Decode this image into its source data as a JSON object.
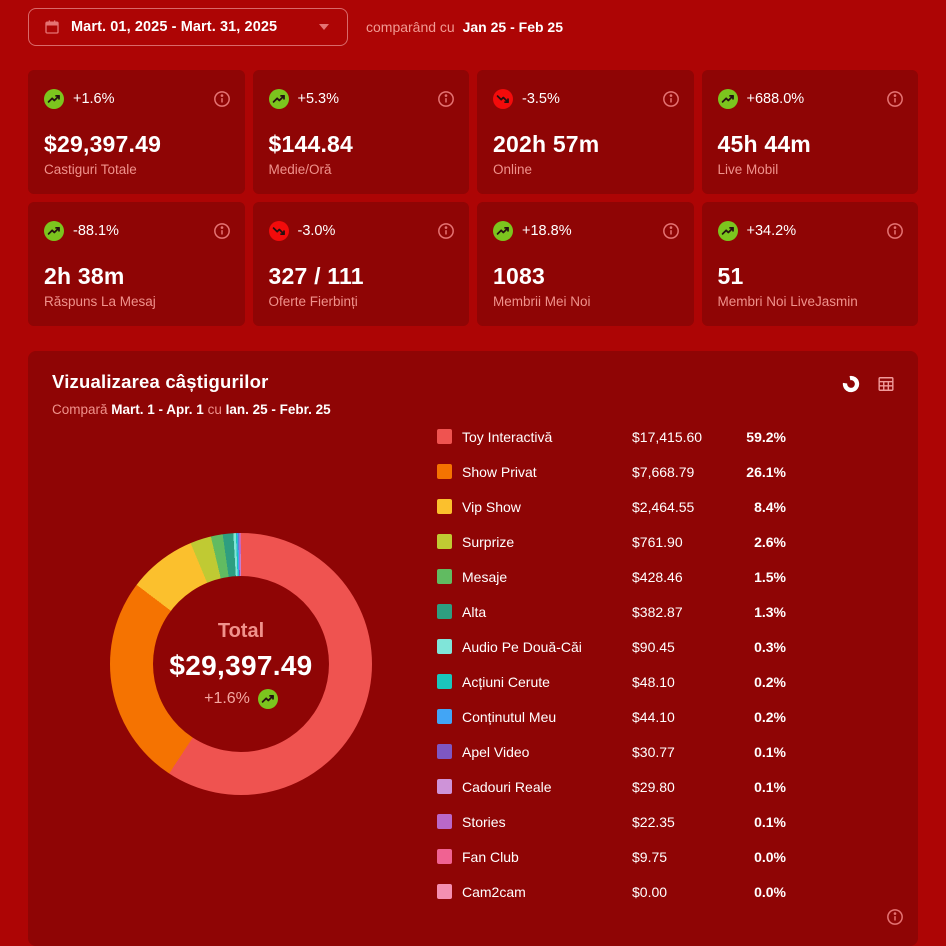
{
  "colors": {
    "page_bg": "#AD0505",
    "card_bg": "#8F0505",
    "muted_text": "#F0928C",
    "trend_up": "#7CC51E",
    "trend_down": "#F30B0B",
    "trend_arrow": "#241010",
    "info_icon": "#E57373",
    "active_icon": "#FFFFFF",
    "inactive_icon": "#F09B9B"
  },
  "topbar": {
    "date_range": "Mart. 01, 2025 - Mart. 31, 2025",
    "comparing_label": "comparând cu",
    "comparing_range": "Jan 25 - Feb 25"
  },
  "stat_cards": [
    {
      "trend": "up",
      "percent": "+1.6%",
      "value": "$29,397.49",
      "label": "Castiguri Totale"
    },
    {
      "trend": "up",
      "percent": "+5.3%",
      "value": "$144.84",
      "label": "Medie/Oră"
    },
    {
      "trend": "down",
      "percent": "-3.5%",
      "value": "202h 57m",
      "label": "Online"
    },
    {
      "trend": "up",
      "percent": "+688.0%",
      "value": "45h 44m",
      "label": "Live Mobil"
    },
    {
      "trend": "up",
      "percent": "-88.1%",
      "value": "2h 38m",
      "label": "Răspuns La Mesaj"
    },
    {
      "trend": "down",
      "percent": "-3.0%",
      "value": "327 / 111",
      "label": "Oferte Fierbinți"
    },
    {
      "trend": "up",
      "percent": "+18.8%",
      "value": "1083",
      "label": "Membrii Mei Noi"
    },
    {
      "trend": "up",
      "percent": "+34.2%",
      "value": "51",
      "label": "Membri Noi LiveJasmin"
    }
  ],
  "panel": {
    "title": "Vizualizarea câștigurilor",
    "compare_prefix": "Compară",
    "compare_current": "Mart. 1 - Apr. 1",
    "compare_connector": "cu",
    "compare_previous": "Ian. 25 - Febr. 25",
    "center": {
      "label": "Total",
      "value": "$29,397.49",
      "change": "+1.6%",
      "trend": "up"
    }
  },
  "chart_data": {
    "type": "pie",
    "donut": true,
    "title": "Vizualizarea câștigurilor",
    "legend_position": "right",
    "total_label": "Total",
    "total_value": 29397.49,
    "total_display": "$29,397.49",
    "change_display": "+1.6%",
    "segments": [
      {
        "label": "Toy Interactivă",
        "value": 17415.6,
        "display": "$17,415.60",
        "percent": "59.2%",
        "color": "#EF5350"
      },
      {
        "label": "Show Privat",
        "value": 7668.79,
        "display": "$7,668.79",
        "percent": "26.1%",
        "color": "#F57301"
      },
      {
        "label": "Vip Show",
        "value": 2464.55,
        "display": "$2,464.55",
        "percent": "8.4%",
        "color": "#FBC02D"
      },
      {
        "label": "Surprize",
        "value": 761.9,
        "display": "$761.90",
        "percent": "2.6%",
        "color": "#C0CA33"
      },
      {
        "label": "Mesaje",
        "value": 428.46,
        "display": "$428.46",
        "percent": "1.5%",
        "color": "#61BB61"
      },
      {
        "label": "Alta",
        "value": 382.87,
        "display": "$382.87",
        "percent": "1.3%",
        "color": "#2E9E80"
      },
      {
        "label": "Audio Pe Două-Căi",
        "value": 90.45,
        "display": "$90.45",
        "percent": "0.3%",
        "color": "#80E5D9"
      },
      {
        "label": "Acțiuni Cerute",
        "value": 48.1,
        "display": "$48.10",
        "percent": "0.2%",
        "color": "#1AC6BC"
      },
      {
        "label": "Conținutul Meu",
        "value": 44.1,
        "display": "$44.10",
        "percent": "0.2%",
        "color": "#42A5F5"
      },
      {
        "label": "Apel Video",
        "value": 30.77,
        "display": "$30.77",
        "percent": "0.1%",
        "color": "#7E57C2"
      },
      {
        "label": "Cadouri Reale",
        "value": 29.8,
        "display": "$29.80",
        "percent": "0.1%",
        "color": "#CE93D8"
      },
      {
        "label": "Stories",
        "value": 22.35,
        "display": "$22.35",
        "percent": "0.1%",
        "color": "#BA68C8"
      },
      {
        "label": "Fan Club",
        "value": 9.75,
        "display": "$9.75",
        "percent": "0.0%",
        "color": "#F06292"
      },
      {
        "label": "Cam2cam",
        "value": 0.0,
        "display": "$0.00",
        "percent": "0.0%",
        "color": "#F48FB1"
      }
    ]
  }
}
